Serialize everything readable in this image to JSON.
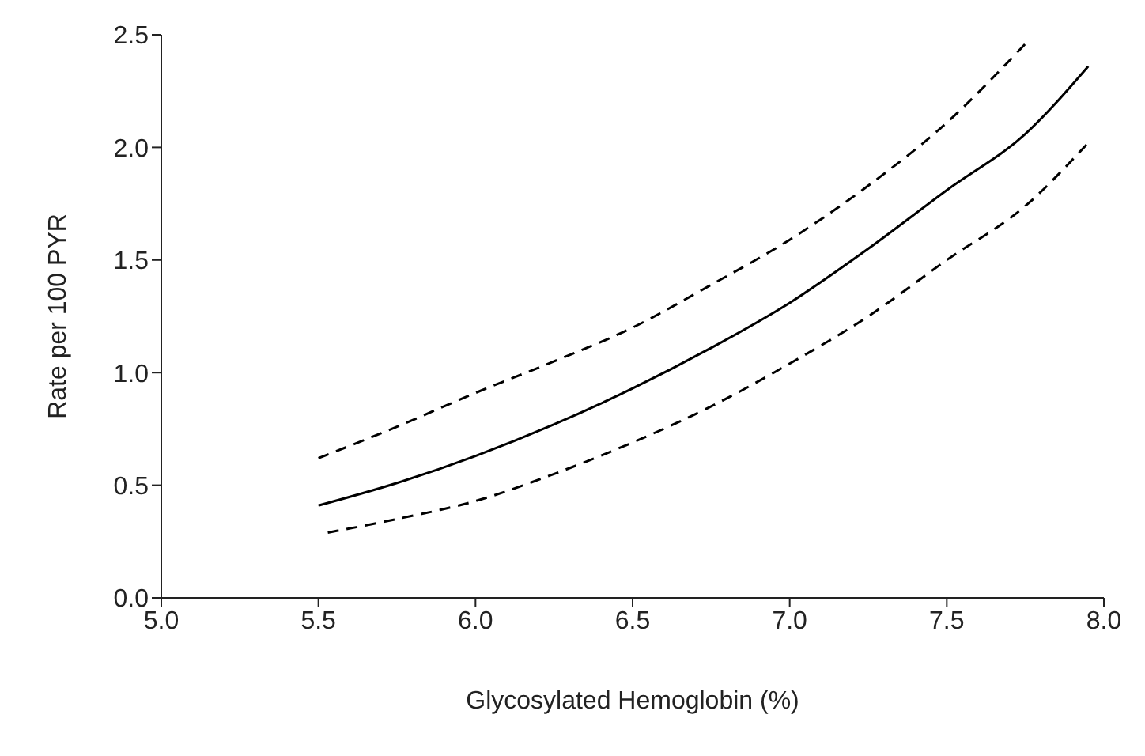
{
  "chart_data": {
    "type": "line",
    "xlabel": "Glycosylated Hemoglobin (%)",
    "ylabel": "Rate per 100 PYR",
    "xlim": [
      5,
      8
    ],
    "xticks": [
      {
        "value": 5,
        "label": "5.0"
      },
      {
        "value": 5.5,
        "label": "5.5"
      },
      {
        "value": 6,
        "label": "6.0"
      },
      {
        "value": 6.5,
        "label": "6.5"
      },
      {
        "value": 7,
        "label": "7.0"
      },
      {
        "value": 7.5,
        "label": "7.5"
      },
      {
        "value": 8,
        "label": "8.0"
      }
    ],
    "ylim": [
      0,
      2.5
    ],
    "yticks": [
      {
        "value": 0,
        "label": "0.0"
      },
      {
        "value": 0.5,
        "label": "0.5"
      },
      {
        "value": 1,
        "label": "1.0"
      },
      {
        "value": 1.5,
        "label": "1.5"
      },
      {
        "value": 2,
        "label": "2.0"
      },
      {
        "value": 2.5,
        "label": "2.5"
      }
    ],
    "grid": false,
    "legend": false,
    "marker": "none",
    "series": [
      {
        "color": "#000000",
        "line_style": "dashed",
        "x": [
          5.5,
          5.75,
          6,
          6.25,
          6.5,
          6.75,
          7,
          7.25,
          7.5,
          7.75
        ],
        "values": [
          0.62,
          0.76,
          0.91,
          1.05,
          1.2,
          1.39,
          1.59,
          1.83,
          2.11,
          2.46
        ]
      },
      {
        "color": "#000000",
        "line_style": "solid",
        "x": [
          5.5,
          5.75,
          6,
          6.25,
          6.5,
          6.75,
          7,
          7.25,
          7.5,
          7.75,
          7.95
        ],
        "values": [
          0.41,
          0.51,
          0.63,
          0.77,
          0.93,
          1.11,
          1.31,
          1.55,
          1.81,
          2.06,
          2.36
        ]
      },
      {
        "color": "#000000",
        "line_style": "dashed",
        "x": [
          5.53,
          5.75,
          6,
          6.25,
          6.5,
          6.75,
          7,
          7.25,
          7.5,
          7.75,
          7.95
        ],
        "values": [
          0.29,
          0.35,
          0.43,
          0.55,
          0.69,
          0.85,
          1.04,
          1.25,
          1.5,
          1.74,
          2.02
        ]
      }
    ]
  }
}
